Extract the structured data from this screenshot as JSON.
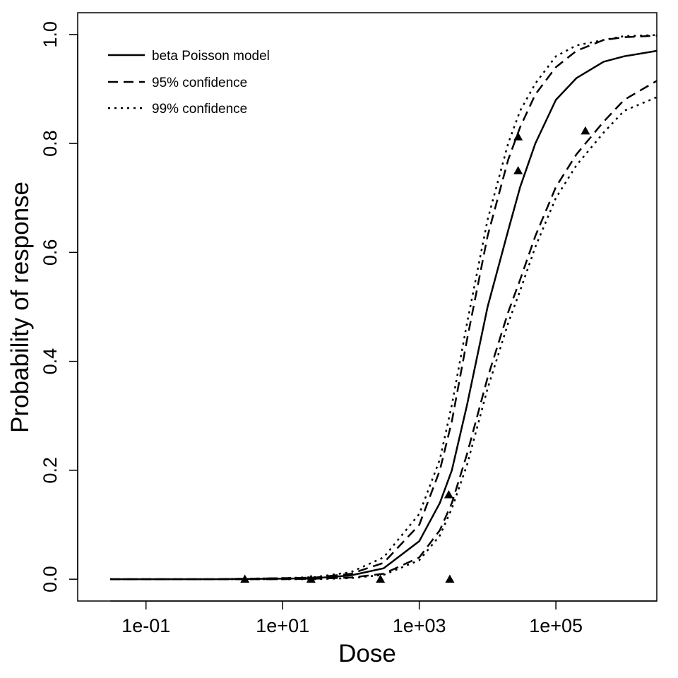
{
  "chart_data": {
    "type": "line",
    "xlabel": "Dose",
    "ylabel": "Probability of response",
    "x_scale": "log10",
    "xlim": [
      0.01,
      3000000
    ],
    "ylim": [
      -0.04,
      1.04
    ],
    "x_ticks": [
      {
        "value": 0.1,
        "label": "1e-01"
      },
      {
        "value": 10,
        "label": "1e+01"
      },
      {
        "value": 1000,
        "label": "1e+03"
      },
      {
        "value": 100000,
        "label": "1e+05"
      }
    ],
    "y_ticks": [
      {
        "value": 0.0,
        "label": "0.0"
      },
      {
        "value": 0.2,
        "label": "0.2"
      },
      {
        "value": 0.4,
        "label": "0.4"
      },
      {
        "value": 0.6,
        "label": "0.6"
      },
      {
        "value": 0.8,
        "label": "0.8"
      },
      {
        "value": 1.0,
        "label": "1.0"
      }
    ],
    "grid": false,
    "legend_position": "top-left",
    "series": [
      {
        "name": "beta Poisson model",
        "style": "solid",
        "x": [
          0.03,
          1,
          10,
          30,
          100,
          300,
          1000,
          2000,
          3000,
          5000,
          10000,
          20000,
          30000,
          50000,
          100000,
          200000,
          500000,
          1000000,
          3000000
        ],
        "y": [
          0.0,
          0.0,
          0.001,
          0.002,
          0.007,
          0.02,
          0.07,
          0.14,
          0.2,
          0.32,
          0.5,
          0.64,
          0.72,
          0.8,
          0.88,
          0.92,
          0.95,
          0.96,
          0.97
        ]
      },
      {
        "name": "95% confidence",
        "style": "dashed",
        "x": [
          0.03,
          1,
          10,
          30,
          100,
          300,
          1000,
          2000,
          3000,
          5000,
          10000,
          20000,
          30000,
          50000,
          100000,
          200000,
          500000,
          1000000,
          3000000
        ],
        "y": [
          0.0,
          0.0,
          0.002,
          0.003,
          0.01,
          0.03,
          0.1,
          0.2,
          0.29,
          0.44,
          0.63,
          0.77,
          0.83,
          0.89,
          0.94,
          0.97,
          0.99,
          0.995,
          0.998
        ]
      },
      {
        "style": "dashed",
        "x": [
          0.03,
          1,
          10,
          30,
          100,
          300,
          1000,
          2000,
          3000,
          5000,
          10000,
          20000,
          30000,
          50000,
          100000,
          200000,
          500000,
          1000000,
          3000000
        ],
        "y": [
          0.0,
          0.0,
          0.0,
          0.001,
          0.003,
          0.01,
          0.04,
          0.09,
          0.14,
          0.23,
          0.37,
          0.49,
          0.55,
          0.63,
          0.72,
          0.78,
          0.84,
          0.88,
          0.915
        ]
      },
      {
        "name": "99% confidence",
        "style": "dotted",
        "x": [
          0.03,
          1,
          10,
          30,
          100,
          300,
          1000,
          2000,
          3000,
          5000,
          10000,
          20000,
          30000,
          50000,
          100000,
          200000,
          500000,
          1000000,
          3000000
        ],
        "y": [
          0.0,
          0.0,
          0.002,
          0.004,
          0.013,
          0.04,
          0.12,
          0.22,
          0.32,
          0.47,
          0.66,
          0.8,
          0.86,
          0.91,
          0.96,
          0.98,
          0.99,
          0.997,
          0.999
        ]
      },
      {
        "style": "dotted",
        "x": [
          0.03,
          1,
          10,
          30,
          100,
          300,
          1000,
          2000,
          3000,
          5000,
          10000,
          20000,
          30000,
          50000,
          100000,
          200000,
          500000,
          1000000,
          3000000
        ],
        "y": [
          0.0,
          0.0,
          0.0,
          0.0,
          0.002,
          0.008,
          0.035,
          0.08,
          0.13,
          0.21,
          0.35,
          0.47,
          0.53,
          0.61,
          0.7,
          0.76,
          0.82,
          0.86,
          0.885
        ]
      }
    ],
    "points": {
      "marker": "triangle",
      "x": [
        2.8,
        26,
        270,
        2700,
        2800,
        28000,
        28000,
        270000
      ],
      "y": [
        0.0,
        0.0,
        0.0,
        0.155,
        0.0,
        0.812,
        0.75,
        0.823
      ]
    }
  }
}
